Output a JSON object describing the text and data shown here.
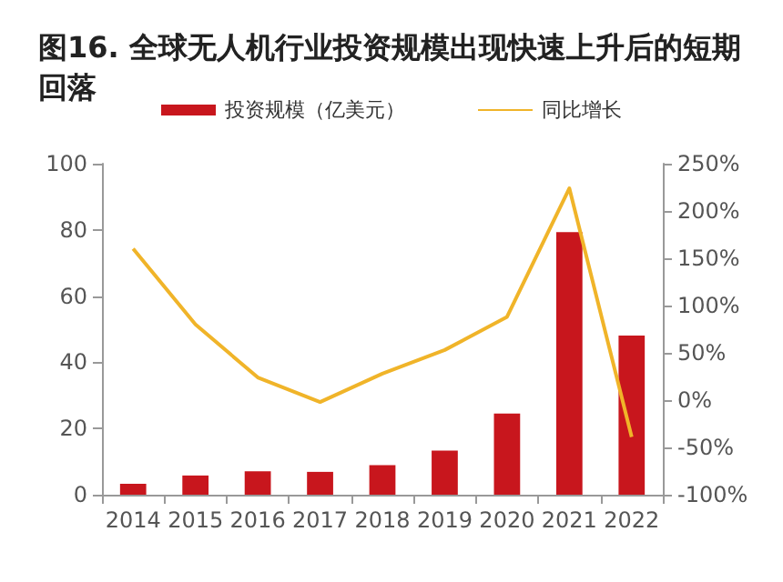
{
  "chart_data": {
    "type": "bar",
    "title": "图16. 全球无人机行业投资规模出现快速上升后的短期回落",
    "categories": [
      "2014",
      "2015",
      "2016",
      "2017",
      "2018",
      "2019",
      "2020",
      "2021",
      "2022"
    ],
    "series": [
      {
        "name": "投资规模（亿美元）",
        "color": "#c8161d",
        "values": [
          3.3,
          5.8,
          7.1,
          6.9,
          8.9,
          13.3,
          24.5,
          79.3,
          48.1
        ]
      },
      {
        "name": "同比增长",
        "type": "line",
        "axis": "y2",
        "color": "#f0b429",
        "values": [
          160,
          80,
          24,
          -2,
          28,
          53,
          88,
          224,
          -39
        ]
      }
    ],
    "ylim": [
      0,
      100
    ],
    "yticks": [
      0,
      20,
      40,
      60,
      80,
      100
    ],
    "y2lim": [
      -100,
      250
    ],
    "y2ticks": [
      {
        "value": -100,
        "label": "-100%"
      },
      {
        "value": -50,
        "label": "-50%"
      },
      {
        "value": 0,
        "label": "0%"
      },
      {
        "value": 50,
        "label": "50%"
      },
      {
        "value": 100,
        "label": "100%"
      },
      {
        "value": 150,
        "label": "150%"
      },
      {
        "value": 200,
        "label": "200%"
      },
      {
        "value": 250,
        "label": "250%"
      }
    ],
    "legend": "top",
    "marker": "none",
    "grid": false
  }
}
